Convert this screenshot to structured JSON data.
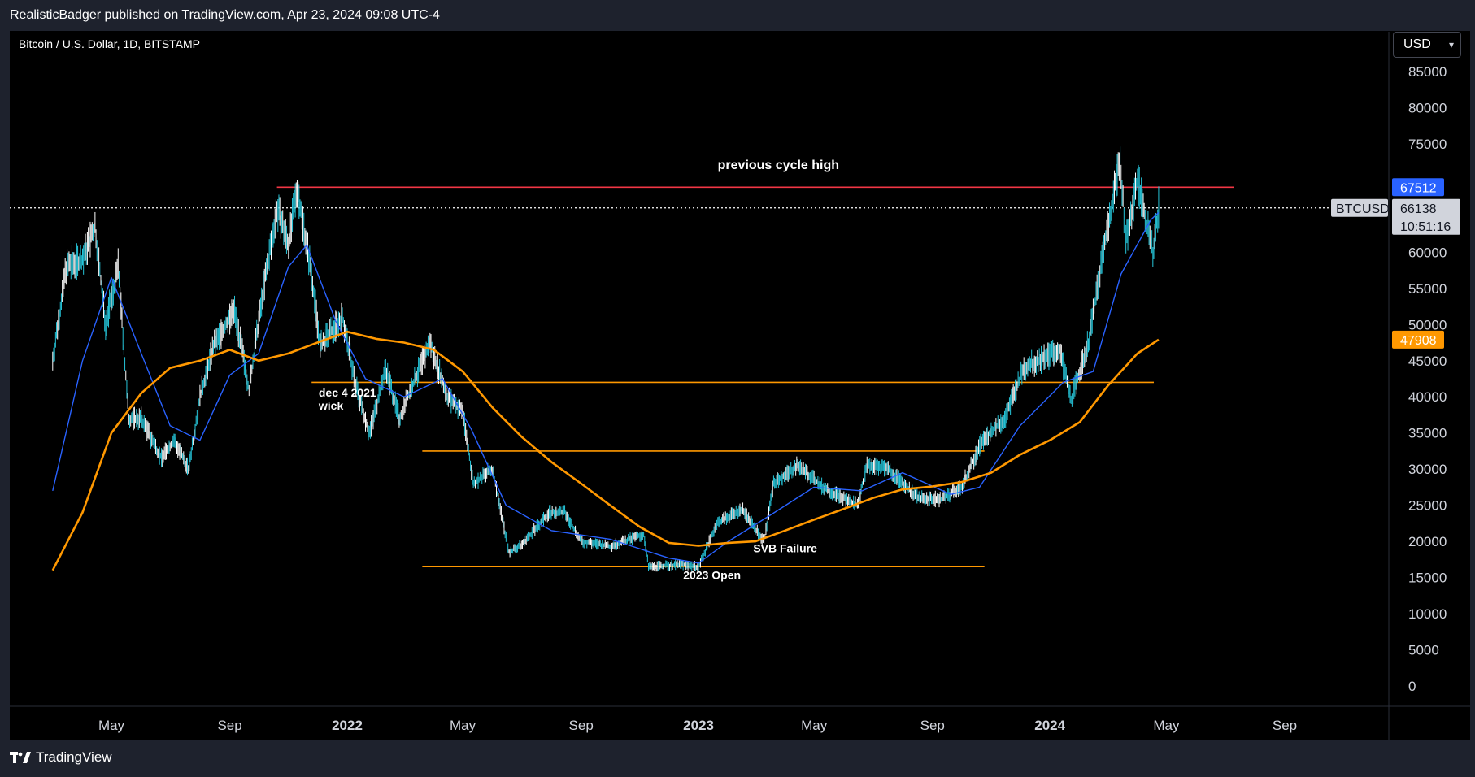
{
  "header": {
    "published_line": "RealisticBadger published on TradingView.com, Apr 23, 2024 09:08 UTC-4"
  },
  "symbol": {
    "title": "Bitcoin / U.S. Dollar, 1D, BITSTAMP"
  },
  "currency_selector": {
    "label": "USD"
  },
  "footer": {
    "brand": "TradingView"
  },
  "colors": {
    "background": "#000000",
    "price_line": "#ffffff",
    "candle_up": "#26c6da",
    "candle_down": "#ffffff",
    "ma_fast": "#2962ff",
    "ma_slow": "#ff9800",
    "resistance": "#f23645",
    "level_line": "#ff9800",
    "tag_blue": "#2962ff",
    "tag_orange": "#ff9800"
  },
  "chart_data": {
    "type": "line",
    "title": "Bitcoin / U.S. Dollar, 1D, BITSTAMP",
    "y_axis": {
      "unit": "USD",
      "ticks": [
        0,
        5000,
        10000,
        15000,
        20000,
        25000,
        30000,
        35000,
        40000,
        45000,
        50000,
        55000,
        60000,
        65000,
        70000,
        75000,
        80000,
        85000
      ],
      "tick_labels": [
        "0",
        "5000",
        "10000",
        "15000",
        "20000",
        "25000",
        "30000",
        "35000",
        "40000",
        "45000",
        "50000",
        "55000",
        "60000",
        "",
        "",
        "75000",
        "80000",
        "85000"
      ]
    },
    "x_axis": {
      "range": [
        "2021-03-01",
        "2024-12-31"
      ],
      "tick_labels": [
        {
          "label": "May",
          "date": "2021-05-01"
        },
        {
          "label": "Sep",
          "date": "2021-09-01"
        },
        {
          "label": "2022",
          "date": "2022-01-01"
        },
        {
          "label": "May",
          "date": "2022-05-01"
        },
        {
          "label": "Sep",
          "date": "2022-09-01"
        },
        {
          "label": "2023",
          "date": "2023-01-01"
        },
        {
          "label": "May",
          "date": "2023-05-01"
        },
        {
          "label": "Sep",
          "date": "2023-09-01"
        },
        {
          "label": "2024",
          "date": "2024-01-01"
        },
        {
          "label": "May",
          "date": "2024-05-01"
        },
        {
          "label": "Sep",
          "date": "2024-09-01"
        }
      ]
    },
    "series": [
      {
        "name": "BTCUSD",
        "color": "#26c6da",
        "points": [
          [
            "2021-03-01",
            45000
          ],
          [
            "2021-03-15",
            58000
          ],
          [
            "2021-04-01",
            59000
          ],
          [
            "2021-04-14",
            63500
          ],
          [
            "2021-04-25",
            50000
          ],
          [
            "2021-05-08",
            58000
          ],
          [
            "2021-05-19",
            37000
          ],
          [
            "2021-06-01",
            37000
          ],
          [
            "2021-06-22",
            31500
          ],
          [
            "2021-07-05",
            34000
          ],
          [
            "2021-07-20",
            30000
          ],
          [
            "2021-08-01",
            40000
          ],
          [
            "2021-08-15",
            47000
          ],
          [
            "2021-09-06",
            52000
          ],
          [
            "2021-09-21",
            41000
          ],
          [
            "2021-10-06",
            55000
          ],
          [
            "2021-10-20",
            66000
          ],
          [
            "2021-11-01",
            61000
          ],
          [
            "2021-11-10",
            69000
          ],
          [
            "2021-11-25",
            57000
          ],
          [
            "2021-12-04",
            47000
          ],
          [
            "2021-12-27",
            51000
          ],
          [
            "2022-01-10",
            41500
          ],
          [
            "2022-01-24",
            35000
          ],
          [
            "2022-02-10",
            44000
          ],
          [
            "2022-02-24",
            37000
          ],
          [
            "2022-03-28",
            47500
          ],
          [
            "2022-04-15",
            40000
          ],
          [
            "2022-05-01",
            38000
          ],
          [
            "2022-05-12",
            28000
          ],
          [
            "2022-06-01",
            30000
          ],
          [
            "2022-06-18",
            18500
          ],
          [
            "2022-07-01",
            19500
          ],
          [
            "2022-07-30",
            24000
          ],
          [
            "2022-08-15",
            24000
          ],
          [
            "2022-09-01",
            20000
          ],
          [
            "2022-10-01",
            19300
          ],
          [
            "2022-11-05",
            21000
          ],
          [
            "2022-11-10",
            16500
          ],
          [
            "2022-12-15",
            16800
          ],
          [
            "2023-01-01",
            16500
          ],
          [
            "2023-01-20",
            22500
          ],
          [
            "2023-02-15",
            24500
          ],
          [
            "2023-03-10",
            20000
          ],
          [
            "2023-03-20",
            28000
          ],
          [
            "2023-04-14",
            30500
          ],
          [
            "2023-05-10",
            27500
          ],
          [
            "2023-06-15",
            25000
          ],
          [
            "2023-06-25",
            30500
          ],
          [
            "2023-07-15",
            30300
          ],
          [
            "2023-08-17",
            26000
          ],
          [
            "2023-09-10",
            25800
          ],
          [
            "2023-10-01",
            27500
          ],
          [
            "2023-10-23",
            34000
          ],
          [
            "2023-11-15",
            37000
          ],
          [
            "2023-12-05",
            44000
          ],
          [
            "2024-01-11",
            46500
          ],
          [
            "2024-01-23",
            39500
          ],
          [
            "2024-02-10",
            47500
          ],
          [
            "2024-02-28",
            62000
          ],
          [
            "2024-03-14",
            73000
          ],
          [
            "2024-03-20",
            61500
          ],
          [
            "2024-04-01",
            70000
          ],
          [
            "2024-04-17",
            60000
          ],
          [
            "2024-04-23",
            66138
          ]
        ]
      },
      {
        "name": "MA fast",
        "color": "#2962ff",
        "points": [
          [
            "2021-03-01",
            27000
          ],
          [
            "2021-04-01",
            45000
          ],
          [
            "2021-05-01",
            56500
          ],
          [
            "2021-06-01",
            46000
          ],
          [
            "2021-07-01",
            36000
          ],
          [
            "2021-08-01",
            34000
          ],
          [
            "2021-09-01",
            43000
          ],
          [
            "2021-10-01",
            46000
          ],
          [
            "2021-11-01",
            58000
          ],
          [
            "2021-11-20",
            61000
          ],
          [
            "2021-12-20",
            50500
          ],
          [
            "2022-01-20",
            42500
          ],
          [
            "2022-03-01",
            40000
          ],
          [
            "2022-04-10",
            42500
          ],
          [
            "2022-05-10",
            35500
          ],
          [
            "2022-06-15",
            25000
          ],
          [
            "2022-08-01",
            21500
          ],
          [
            "2022-10-01",
            20300
          ],
          [
            "2022-12-01",
            17700
          ],
          [
            "2023-01-01",
            17000
          ],
          [
            "2023-02-01",
            20000
          ],
          [
            "2023-03-15",
            23500
          ],
          [
            "2023-05-01",
            27500
          ],
          [
            "2023-06-20",
            27000
          ],
          [
            "2023-08-01",
            29500
          ],
          [
            "2023-09-20",
            26500
          ],
          [
            "2023-10-20",
            27500
          ],
          [
            "2023-12-01",
            36000
          ],
          [
            "2024-01-15",
            42000
          ],
          [
            "2024-02-15",
            43500
          ],
          [
            "2024-03-15",
            57000
          ],
          [
            "2024-04-15",
            64500
          ],
          [
            "2024-04-23",
            65500
          ]
        ]
      },
      {
        "name": "MA slow",
        "color": "#ff9800",
        "points": [
          [
            "2021-03-01",
            16000
          ],
          [
            "2021-04-01",
            24000
          ],
          [
            "2021-05-01",
            35000
          ],
          [
            "2021-06-01",
            40500
          ],
          [
            "2021-07-01",
            44000
          ],
          [
            "2021-08-01",
            45000
          ],
          [
            "2021-09-01",
            46500
          ],
          [
            "2021-10-01",
            45000
          ],
          [
            "2021-11-01",
            46000
          ],
          [
            "2021-12-01",
            47500
          ],
          [
            "2022-01-01",
            49000
          ],
          [
            "2022-02-01",
            48000
          ],
          [
            "2022-03-01",
            47500
          ],
          [
            "2022-04-01",
            46500
          ],
          [
            "2022-05-01",
            43500
          ],
          [
            "2022-06-01",
            38500
          ],
          [
            "2022-07-01",
            34500
          ],
          [
            "2022-08-01",
            31000
          ],
          [
            "2022-09-01",
            28000
          ],
          [
            "2022-10-01",
            25000
          ],
          [
            "2022-11-01",
            22000
          ],
          [
            "2022-12-01",
            19800
          ],
          [
            "2023-01-01",
            19400
          ],
          [
            "2023-02-01",
            19800
          ],
          [
            "2023-03-01",
            20000
          ],
          [
            "2023-04-01",
            21500
          ],
          [
            "2023-05-01",
            23000
          ],
          [
            "2023-06-01",
            24500
          ],
          [
            "2023-07-01",
            26000
          ],
          [
            "2023-08-01",
            27200
          ],
          [
            "2023-09-01",
            27600
          ],
          [
            "2023-10-01",
            28200
          ],
          [
            "2023-11-01",
            29500
          ],
          [
            "2023-12-01",
            32000
          ],
          [
            "2024-01-01",
            34000
          ],
          [
            "2024-02-01",
            36500
          ],
          [
            "2024-03-01",
            41500
          ],
          [
            "2024-04-01",
            46000
          ],
          [
            "2024-04-23",
            47908
          ]
        ]
      }
    ],
    "horizontal_levels": [
      {
        "price": 69000,
        "from": "2021-10-20",
        "to": "2024-07-10",
        "color": "#f23645"
      },
      {
        "price": 42000,
        "from": "2021-11-25",
        "to": "2024-04-18",
        "color": "#ff9800"
      },
      {
        "price": 32500,
        "from": "2022-03-20",
        "to": "2023-10-25",
        "color": "#ff9800"
      },
      {
        "price": 16500,
        "from": "2022-03-20",
        "to": "2023-10-25",
        "color": "#ff9800"
      }
    ],
    "annotations": [
      {
        "text": "previous cycle high",
        "date": "2023-03-25",
        "price": 71500
      },
      {
        "text": "dec 4 2021",
        "date": "2021-12-04",
        "price": 40000
      },
      {
        "text": "wick",
        "date": "2021-12-04",
        "price": 38200
      },
      {
        "text": "SVB Failure",
        "date": "2023-04-01",
        "price": 18500
      },
      {
        "text": "2023 Open",
        "date": "2023-01-15",
        "price": 14800
      }
    ],
    "price_tags": [
      {
        "text": "67512",
        "price": 69000,
        "color": "#2962ff"
      },
      {
        "text": "47908",
        "price": 47908,
        "color": "#ff9800"
      }
    ],
    "last_price": {
      "symbol": "BTCUSD",
      "value": "66138",
      "countdown": "10:51:16",
      "price": 66138
    }
  }
}
